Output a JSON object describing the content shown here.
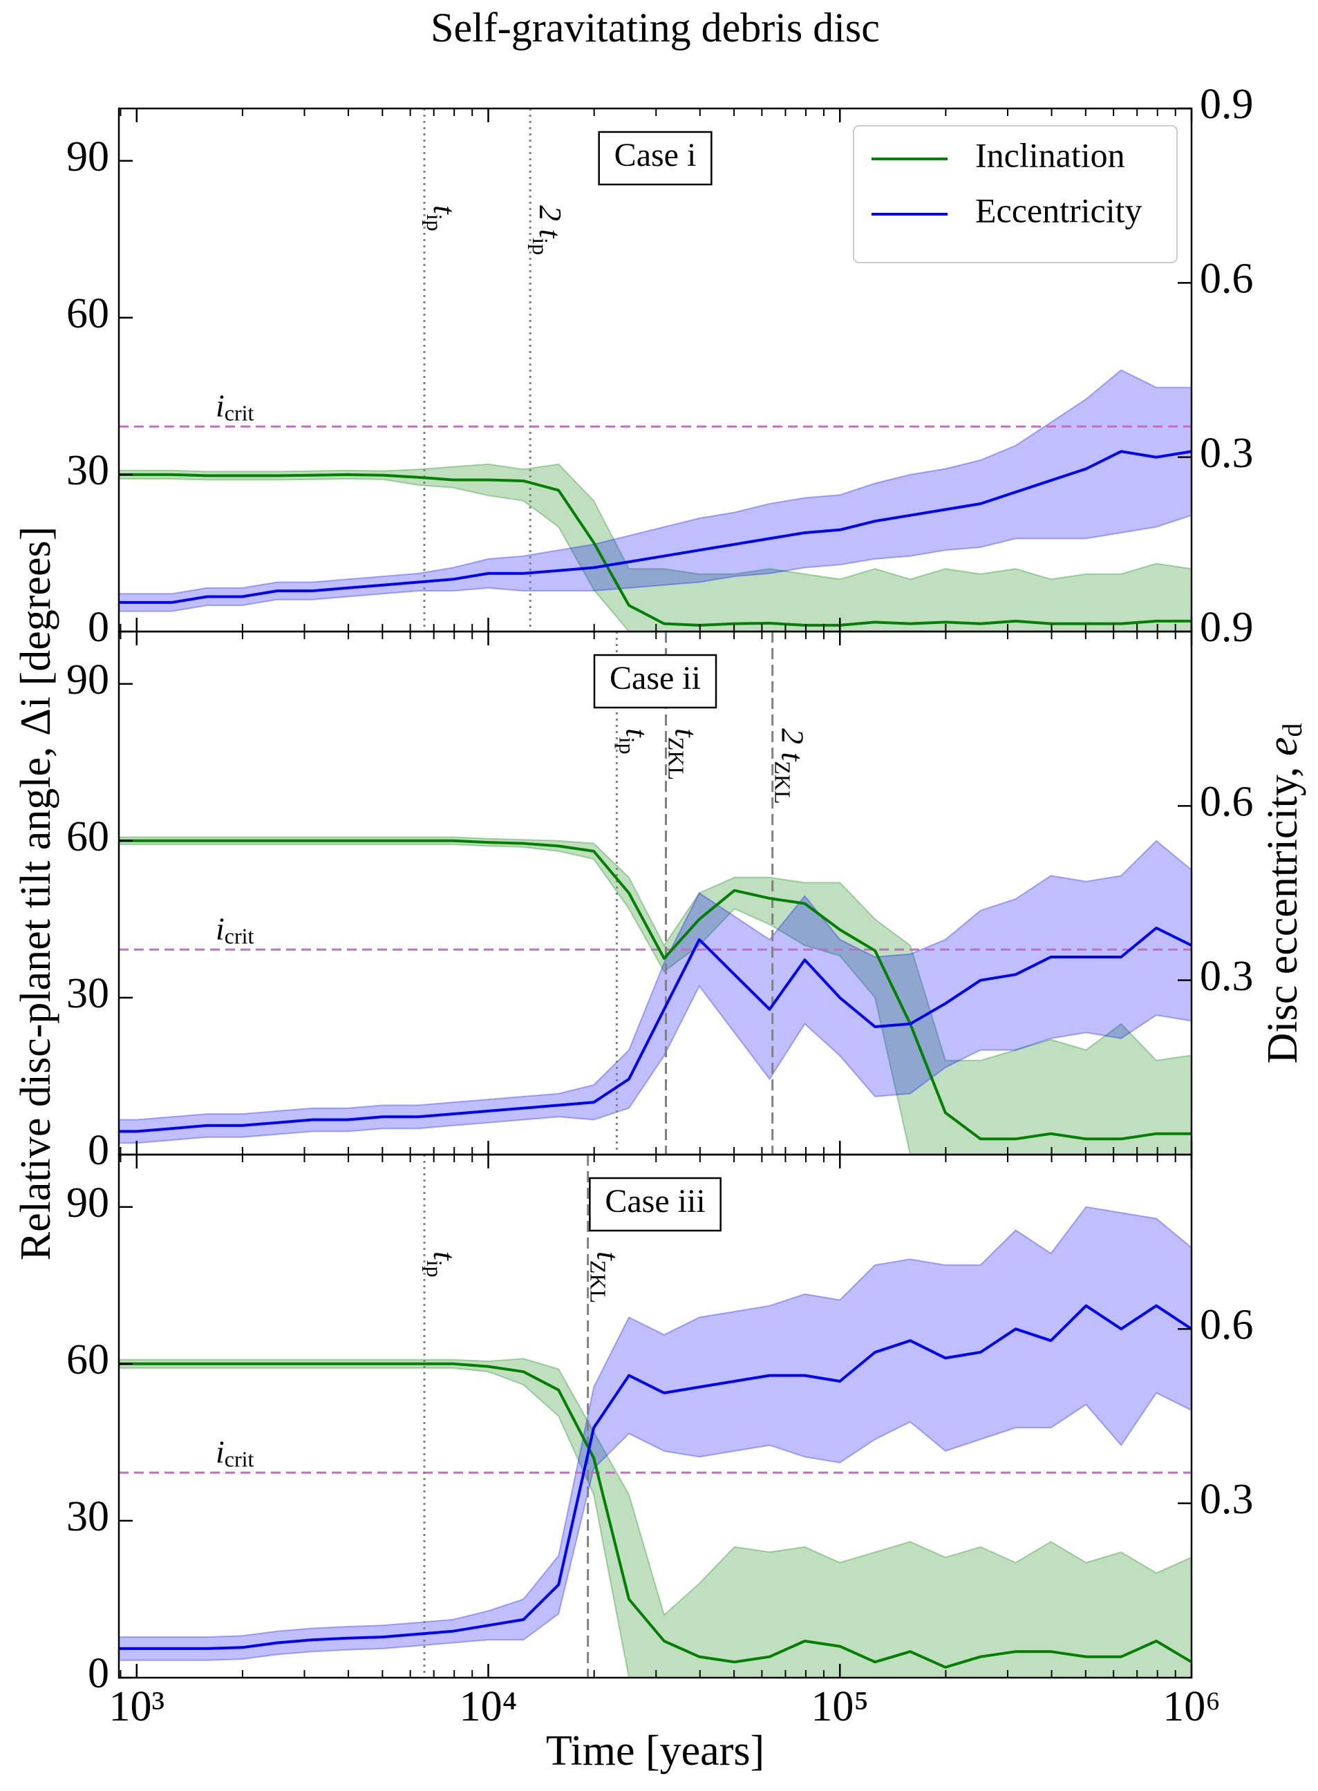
{
  "title": "Self-gravitating debris disc",
  "xlabel": "Time [years]",
  "ylabel": "Relative disc-planet tilt angle, Δi [degrees]",
  "y2label": {
    "text": "Disc eccentricity, ",
    "symbol": "e",
    "sub": "d"
  },
  "chart_data": [
    {
      "type": "line",
      "annotation": "Case i",
      "xscale": "log",
      "xlim": [
        890,
        1000000
      ],
      "xticks": [
        1000,
        10000,
        100000,
        1000000
      ],
      "ylim": [
        0,
        100
      ],
      "yticks": [
        0,
        30,
        60,
        90
      ],
      "y2lim": [
        0,
        0.9
      ],
      "y2ticks": [
        0.3,
        0.6,
        0.9
      ],
      "legend": "upper right",
      "hlines": [
        {
          "value": 39.2,
          "label": {
            "main": "i",
            "sub": "crit"
          },
          "color": "#c070c0",
          "style": "dashed"
        }
      ],
      "vlines": [
        {
          "value": 6580,
          "label": {
            "main": "t",
            "sub": "ip"
          },
          "style": "dotted"
        },
        {
          "value": 13160,
          "label": {
            "main": "2 t",
            "sub": "ip"
          },
          "style": "dotted"
        }
      ],
      "x": [
        890,
        1000,
        1259,
        1585,
        1995,
        2512,
        3162,
        3981,
        5012,
        6310,
        7943,
        10000,
        12589,
        15849,
        19953,
        25119,
        31623,
        39811,
        50119,
        63096,
        79433,
        100000,
        125893,
        158489,
        199526,
        251189,
        316228,
        398107,
        501187,
        630957,
        794328,
        1000000
      ],
      "series": [
        {
          "name": "Inclination",
          "color": "#008000",
          "values": [
            30,
            30,
            30,
            29.8,
            29.8,
            29.8,
            29.9,
            30,
            29.9,
            29.5,
            29,
            29,
            28.8,
            27,
            17,
            5,
            1.5,
            1.2,
            1.5,
            1.6,
            1.2,
            1.2,
            1.8,
            1.5,
            1.8,
            1.5,
            2,
            1.5,
            1.5,
            1.5,
            2,
            2
          ],
          "lower": [
            29.2,
            29.2,
            29.2,
            29,
            29,
            29,
            29.1,
            29.2,
            29.1,
            28,
            27.5,
            26,
            25,
            20,
            8,
            0,
            0,
            0,
            0,
            0,
            0,
            0,
            0,
            0,
            0,
            0,
            0,
            0,
            0,
            0,
            0,
            0
          ],
          "upper": [
            30.8,
            30.8,
            30.8,
            30.6,
            30.6,
            30.6,
            30.7,
            30.8,
            30.7,
            31,
            31.5,
            32,
            31,
            32,
            25,
            12,
            12,
            11,
            11,
            12,
            11,
            10,
            12,
            10,
            12,
            11,
            12,
            10,
            11,
            11,
            13,
            12
          ]
        },
        {
          "name": "Eccentricity",
          "color": "#0000ff",
          "axis": "y2",
          "values": [
            0.05,
            0.05,
            0.05,
            0.06,
            0.06,
            0.07,
            0.07,
            0.075,
            0.08,
            0.085,
            0.09,
            0.1,
            0.1,
            0.105,
            0.11,
            0.12,
            0.13,
            0.14,
            0.15,
            0.16,
            0.17,
            0.175,
            0.19,
            0.2,
            0.21,
            0.22,
            0.24,
            0.26,
            0.28,
            0.31,
            0.3,
            0.31
          ],
          "lower": [
            0.035,
            0.035,
            0.035,
            0.045,
            0.045,
            0.055,
            0.055,
            0.06,
            0.065,
            0.07,
            0.07,
            0.075,
            0.07,
            0.07,
            0.07,
            0.075,
            0.08,
            0.085,
            0.095,
            0.1,
            0.11,
            0.115,
            0.125,
            0.13,
            0.14,
            0.145,
            0.16,
            0.16,
            0.16,
            0.17,
            0.18,
            0.2
          ],
          "upper": [
            0.065,
            0.065,
            0.065,
            0.075,
            0.075,
            0.085,
            0.085,
            0.09,
            0.095,
            0.1,
            0.11,
            0.125,
            0.13,
            0.14,
            0.15,
            0.165,
            0.18,
            0.195,
            0.205,
            0.22,
            0.23,
            0.235,
            0.255,
            0.27,
            0.28,
            0.295,
            0.32,
            0.36,
            0.4,
            0.45,
            0.42,
            0.42
          ]
        }
      ]
    },
    {
      "type": "line",
      "annotation": "Case ii",
      "xscale": "log",
      "xlim": [
        890,
        1000000
      ],
      "xticks": [
        1000,
        10000,
        100000,
        1000000
      ],
      "ylim": [
        0,
        100
      ],
      "yticks": [
        0,
        30,
        60,
        90
      ],
      "y2lim": [
        0,
        0.9
      ],
      "y2ticks": [
        0.3,
        0.6,
        0.9
      ],
      "hlines": [
        {
          "value": 39.2,
          "label": {
            "main": "i",
            "sub": "crit"
          },
          "color": "#c070c0",
          "style": "dashed"
        }
      ],
      "vlines": [
        {
          "value": 23200,
          "label": {
            "main": "t",
            "sub": "ip"
          },
          "style": "dotted"
        },
        {
          "value": 32000,
          "label": {
            "main": "t",
            "sub": "ZKL"
          },
          "style": "dashed"
        },
        {
          "value": 64300,
          "label": {
            "main": "2 t",
            "sub": "ZKL"
          },
          "style": "dashed"
        }
      ],
      "x": [
        890,
        1000,
        1259,
        1585,
        1995,
        2512,
        3162,
        3981,
        5012,
        6310,
        7943,
        10000,
        12589,
        15849,
        19953,
        25119,
        31623,
        39811,
        50119,
        63096,
        79433,
        100000,
        125893,
        158489,
        199526,
        251189,
        316228,
        398107,
        501187,
        630957,
        794328,
        1000000
      ],
      "series": [
        {
          "color": "#008000",
          "values": [
            60,
            60,
            60,
            60,
            60,
            60,
            60,
            60,
            60,
            60,
            60,
            59.7,
            59.5,
            59,
            58,
            50,
            37.5,
            45,
            50.5,
            49,
            48,
            43,
            39,
            25,
            8,
            3,
            3,
            4,
            3,
            3,
            4,
            4
          ],
          "lower": [
            59.3,
            59.3,
            59.3,
            59.3,
            59.3,
            59.3,
            59.3,
            59.3,
            59.3,
            59.3,
            59.3,
            59,
            58.8,
            58,
            56.5,
            47,
            35,
            40,
            47,
            44,
            40,
            38,
            30,
            0,
            0,
            0,
            0,
            0,
            0,
            0,
            0,
            0
          ],
          "upper": [
            60.7,
            60.7,
            60.7,
            60.7,
            60.7,
            60.7,
            60.7,
            60.7,
            60.7,
            60.7,
            60.7,
            60.4,
            60.2,
            60,
            59.5,
            53,
            40,
            50,
            53,
            53,
            52,
            52,
            45,
            40,
            18,
            18,
            20,
            22,
            20,
            25,
            18,
            19
          ]
        },
        {
          "color": "#0000ff",
          "axis": "y2",
          "values": [
            0.04,
            0.04,
            0.045,
            0.05,
            0.05,
            0.055,
            0.06,
            0.06,
            0.065,
            0.065,
            0.07,
            0.075,
            0.08,
            0.085,
            0.09,
            0.13,
            0.25,
            0.37,
            0.31,
            0.25,
            0.335,
            0.27,
            0.22,
            0.225,
            0.26,
            0.3,
            0.31,
            0.34,
            0.34,
            0.34,
            0.39,
            0.36
          ],
          "lower": [
            0.02,
            0.02,
            0.025,
            0.03,
            0.03,
            0.035,
            0.04,
            0.04,
            0.045,
            0.045,
            0.05,
            0.055,
            0.06,
            0.065,
            0.06,
            0.08,
            0.17,
            0.29,
            0.21,
            0.13,
            0.225,
            0.17,
            0.1,
            0.105,
            0.15,
            0.18,
            0.18,
            0.2,
            0.21,
            0.2,
            0.24,
            0.23
          ],
          "upper": [
            0.06,
            0.06,
            0.065,
            0.07,
            0.07,
            0.075,
            0.08,
            0.08,
            0.085,
            0.085,
            0.09,
            0.095,
            0.1,
            0.105,
            0.12,
            0.18,
            0.33,
            0.45,
            0.41,
            0.37,
            0.445,
            0.37,
            0.34,
            0.345,
            0.37,
            0.42,
            0.44,
            0.48,
            0.47,
            0.48,
            0.54,
            0.49
          ]
        }
      ]
    },
    {
      "type": "line",
      "annotation": "Case iii",
      "xscale": "log",
      "xlim": [
        890,
        1000000
      ],
      "xticks": [
        {
          "value": 1000,
          "label": "10³"
        },
        {
          "value": 10000,
          "label": "10⁴"
        },
        {
          "value": 100000,
          "label": "10⁵"
        },
        {
          "value": 1000000,
          "label": "10⁶"
        }
      ],
      "ylim": [
        0,
        100
      ],
      "yticks": [
        0,
        30,
        60,
        90
      ],
      "y2lim": [
        0,
        0.9
      ],
      "y2ticks": [
        0.3,
        0.6
      ],
      "hlines": [
        {
          "value": 39.2,
          "label": {
            "main": "i",
            "sub": "crit"
          },
          "color": "#c070c0",
          "style": "dashed"
        }
      ],
      "vlines": [
        {
          "value": 6580,
          "label": {
            "main": "t",
            "sub": "ip"
          },
          "style": "dotted"
        },
        {
          "value": 19200,
          "label": {
            "main": "t",
            "sub": "ZKL"
          },
          "style": "dashed"
        }
      ],
      "x": [
        890,
        1000,
        1259,
        1585,
        1995,
        2512,
        3162,
        3981,
        5012,
        6310,
        7943,
        10000,
        12589,
        15849,
        19953,
        25119,
        31623,
        39811,
        50119,
        63096,
        79433,
        100000,
        125893,
        158489,
        199526,
        251189,
        316228,
        398107,
        501187,
        630957,
        794328,
        1000000
      ],
      "series": [
        {
          "color": "#008000",
          "values": [
            60,
            60,
            60,
            60,
            60,
            60,
            60,
            60,
            60,
            60,
            60,
            59.5,
            58.5,
            55,
            42,
            15,
            7,
            4,
            3,
            4,
            7,
            6,
            3,
            5,
            2,
            4,
            5,
            5,
            4,
            4,
            7,
            3
          ],
          "lower": [
            59.2,
            59.2,
            59.2,
            59.2,
            59.2,
            59.2,
            59.2,
            59.2,
            59.2,
            59.2,
            59.2,
            58.5,
            56,
            50,
            35,
            0,
            0,
            0,
            0,
            0,
            0,
            0,
            0,
            0,
            0,
            0,
            0,
            0,
            0,
            0,
            0,
            0
          ],
          "upper": [
            60.8,
            60.8,
            60.8,
            60.8,
            60.8,
            60.8,
            60.8,
            60.8,
            60.8,
            60.8,
            60.8,
            60.5,
            61,
            59,
            47,
            35,
            12,
            18,
            25,
            24,
            25,
            22,
            24,
            26,
            23,
            25,
            22,
            26,
            22,
            24,
            20,
            23
          ]
        },
        {
          "color": "#0000ff",
          "axis": "y2",
          "values": [
            0.05,
            0.05,
            0.05,
            0.05,
            0.052,
            0.06,
            0.065,
            0.068,
            0.07,
            0.075,
            0.08,
            0.09,
            0.1,
            0.16,
            0.43,
            0.52,
            0.49,
            0.5,
            0.51,
            0.52,
            0.52,
            0.51,
            0.56,
            0.58,
            0.55,
            0.56,
            0.6,
            0.58,
            0.64,
            0.6,
            0.64,
            0.6
          ],
          "lower": [
            0.03,
            0.03,
            0.03,
            0.03,
            0.032,
            0.04,
            0.045,
            0.048,
            0.05,
            0.055,
            0.06,
            0.065,
            0.065,
            0.11,
            0.36,
            0.42,
            0.39,
            0.38,
            0.39,
            0.4,
            0.38,
            0.37,
            0.41,
            0.44,
            0.39,
            0.41,
            0.43,
            0.43,
            0.47,
            0.4,
            0.49,
            0.46
          ],
          "upper": [
            0.07,
            0.07,
            0.07,
            0.07,
            0.072,
            0.08,
            0.085,
            0.088,
            0.09,
            0.095,
            0.1,
            0.115,
            0.135,
            0.21,
            0.5,
            0.62,
            0.59,
            0.62,
            0.63,
            0.64,
            0.66,
            0.65,
            0.71,
            0.72,
            0.71,
            0.71,
            0.77,
            0.73,
            0.81,
            0.8,
            0.79,
            0.74
          ]
        }
      ]
    }
  ]
}
